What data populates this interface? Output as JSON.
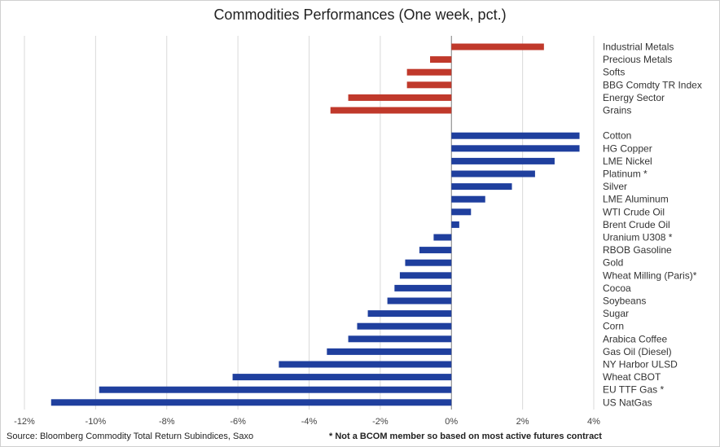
{
  "title": "Commodities Performances (One week, pct.)",
  "source": "Source: Bloomberg Commodity Total Return Subindices, Saxo",
  "note": "* Not a BCOM member so based on most active futures contract",
  "colors": {
    "sector": "#c0392b",
    "commodity": "#1f3f9e",
    "grid": "#d9d9d9",
    "axis": "#7f7f7f"
  },
  "chart_data": {
    "type": "bar",
    "orientation": "horizontal",
    "title": "Commodities Performances (One week, pct.)",
    "xlim": [
      -12,
      4
    ],
    "xticks": [
      -12,
      -10,
      -8,
      -6,
      -4,
      -2,
      0,
      2,
      4
    ],
    "xtick_labels": [
      "-12%",
      "-10%",
      "-8%",
      "-6%",
      "-4%",
      "-2%",
      "0%",
      "2%",
      "4%"
    ],
    "grid": true,
    "groups": [
      {
        "name": "sectors",
        "color": "#c0392b",
        "categories": [
          "Industrial Metals",
          "Precious Metals",
          "Softs",
          "BBG Comdty TR Index",
          "Energy Sector",
          "Grains"
        ],
        "values": [
          2.6,
          -0.6,
          -1.25,
          -1.25,
          -2.9,
          -3.4
        ]
      },
      {
        "name": "commodities",
        "color": "#1f3f9e",
        "categories": [
          "Cotton",
          "HG Copper",
          "LME Nickel",
          "Platinum *",
          "Silver",
          "LME Aluminum",
          "WTI Crude Oil",
          "Brent Crude Oil",
          "Uranium U308 *",
          "RBOB Gasoline",
          "Gold",
          "Wheat Milling (Paris)*",
          "Cocoa",
          "Soybeans",
          "Sugar",
          "Corn",
          "Arabica Coffee",
          "Gas Oil (Diesel)",
          "NY Harbor ULSD",
          "Wheat CBOT",
          "EU TTF Gas *",
          "US NatGas"
        ],
        "values": [
          3.6,
          3.6,
          2.9,
          2.35,
          1.7,
          0.95,
          0.55,
          0.22,
          -0.5,
          -0.9,
          -1.3,
          -1.45,
          -1.6,
          -1.8,
          -2.35,
          -2.65,
          -2.9,
          -3.5,
          -4.85,
          -6.15,
          -9.9,
          -11.25
        ]
      }
    ]
  }
}
